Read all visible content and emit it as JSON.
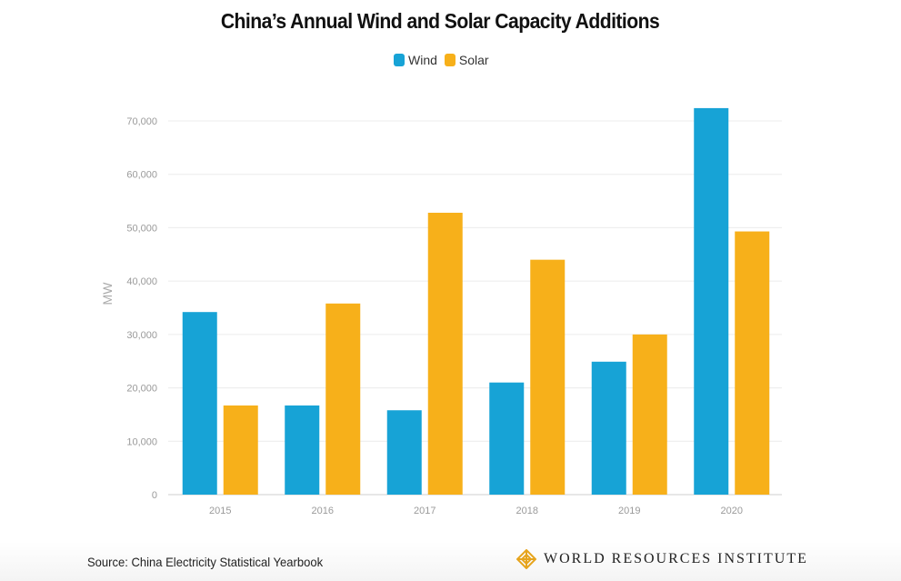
{
  "chart_data": {
    "type": "bar",
    "title": "China’s Annual Wind and Solar Capacity Additions",
    "ylabel": "MW",
    "xlabel": "",
    "categories": [
      "2015",
      "2016",
      "2017",
      "2018",
      "2019",
      "2020"
    ],
    "series": [
      {
        "name": "Wind",
        "color": "#17a3d6",
        "values": [
          34200,
          16700,
          15800,
          21000,
          24900,
          72400
        ]
      },
      {
        "name": "Solar",
        "color": "#f7b01a",
        "values": [
          16700,
          35800,
          52800,
          44000,
          30000,
          49300
        ]
      }
    ],
    "ylim": [
      0,
      70000
    ],
    "yticks": [
      {
        "value": 0,
        "label": "0"
      },
      {
        "value": 10000,
        "label": "10,000"
      },
      {
        "value": 20000,
        "label": "20,000"
      },
      {
        "value": 30000,
        "label": "30,000"
      },
      {
        "value": 40000,
        "label": "40,000"
      },
      {
        "value": 50000,
        "label": "50,000"
      },
      {
        "value": 60000,
        "label": "60,000"
      },
      {
        "value": 70000,
        "label": "70,000"
      }
    ],
    "grid": true,
    "legend_position": "top-center"
  },
  "footer": {
    "source": "Source: China Electricity Statistical Yearbook",
    "brand": "WORLD RESOURCES INSTITUTE",
    "brand_icon": "wri-logo-icon"
  }
}
